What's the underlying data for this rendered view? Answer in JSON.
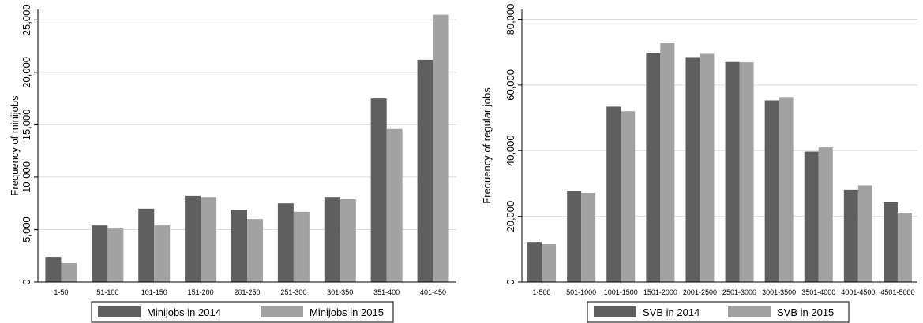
{
  "chart_data": [
    {
      "type": "bar",
      "title": "",
      "xlabel": "",
      "ylabel": "Frequency of minijobs",
      "ylim": [
        0,
        26000
      ],
      "yticks": [
        0,
        5000,
        10000,
        15000,
        20000,
        25000
      ],
      "ytick_labels": [
        "0",
        "5,000",
        "10,000",
        "15,000",
        "20,000",
        "25,000"
      ],
      "grid": true,
      "legend_position": "bottom",
      "categories": [
        "1-50",
        "51-100",
        "101-150",
        "151-200",
        "201-250",
        "251-300",
        "301-350",
        "351-400",
        "401-450"
      ],
      "series": [
        {
          "name": "Minijobs in 2014",
          "color": "#5f5f5f",
          "values": [
            2400,
            5400,
            7000,
            8200,
            6900,
            7500,
            8100,
            17500,
            21200
          ]
        },
        {
          "name": "Minijobs in 2015",
          "color": "#a2a2a2",
          "values": [
            1800,
            5100,
            5400,
            8100,
            6000,
            6700,
            7900,
            14600,
            25500
          ]
        }
      ]
    },
    {
      "type": "bar",
      "title": "",
      "xlabel": "",
      "ylabel": "Frequency of regular jobs",
      "ylim": [
        0,
        83000
      ],
      "yticks": [
        0,
        20000,
        40000,
        60000,
        80000
      ],
      "ytick_labels": [
        "0",
        "20,000",
        "40,000",
        "60,000",
        "80,000"
      ],
      "grid": true,
      "legend_position": "bottom",
      "categories": [
        "1-500",
        "501-1000",
        "1001-1500",
        "1501-2000",
        "2001-2500",
        "2501-3000",
        "3001-3500",
        "3501-4000",
        "4001-4500",
        "4501-5000"
      ],
      "series": [
        {
          "name": "SVB in 2014",
          "color": "#5f5f5f",
          "values": [
            12200,
            27800,
            53400,
            69800,
            68500,
            67000,
            55300,
            39700,
            28100,
            24300
          ]
        },
        {
          "name": "SVB in 2015",
          "color": "#a2a2a2",
          "values": [
            11500,
            27100,
            52000,
            72900,
            69700,
            66900,
            56300,
            41000,
            29400,
            21100
          ]
        }
      ]
    }
  ]
}
